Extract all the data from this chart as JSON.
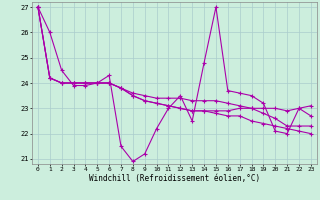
{
  "xlabel": "Windchill (Refroidissement éolien,°C)",
  "background_color": "#cceedd",
  "line_color": "#aa00aa",
  "xlim_min": -0.5,
  "xlim_max": 23.5,
  "ylim_min": 20.8,
  "ylim_max": 27.2,
  "yticks": [
    21,
    22,
    23,
    24,
    25,
    26,
    27
  ],
  "xticks": [
    0,
    1,
    2,
    3,
    4,
    5,
    6,
    7,
    8,
    9,
    10,
    11,
    12,
    13,
    14,
    15,
    16,
    17,
    18,
    19,
    20,
    21,
    22,
    23
  ],
  "series": [
    [
      27.0,
      26.0,
      24.5,
      23.9,
      23.9,
      24.0,
      24.3,
      21.5,
      20.9,
      21.2,
      22.2,
      23.0,
      23.5,
      22.5,
      24.8,
      27.0,
      23.7,
      23.6,
      23.5,
      23.2,
      22.1,
      22.0,
      23.0,
      22.7
    ],
    [
      27.0,
      24.2,
      24.0,
      24.0,
      24.0,
      24.0,
      24.0,
      23.8,
      23.6,
      23.5,
      23.4,
      23.4,
      23.4,
      23.3,
      23.3,
      23.3,
      23.2,
      23.1,
      23.0,
      22.8,
      22.6,
      22.3,
      22.3,
      22.3
    ],
    [
      27.0,
      24.2,
      24.0,
      24.0,
      24.0,
      24.0,
      24.0,
      23.8,
      23.5,
      23.3,
      23.2,
      23.1,
      23.0,
      22.9,
      22.9,
      22.8,
      22.7,
      22.7,
      22.5,
      22.4,
      22.3,
      22.2,
      22.1,
      22.0
    ],
    [
      27.0,
      24.2,
      24.0,
      24.0,
      24.0,
      24.0,
      24.0,
      23.8,
      23.5,
      23.3,
      23.2,
      23.1,
      23.0,
      22.9,
      22.9,
      22.9,
      22.9,
      23.0,
      23.0,
      23.0,
      23.0,
      22.9,
      23.0,
      23.1
    ]
  ]
}
